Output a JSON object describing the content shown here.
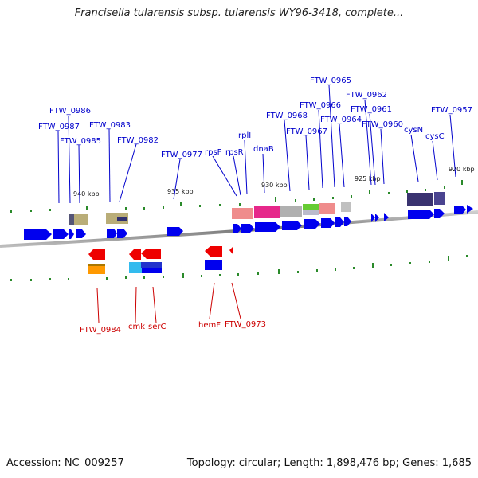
{
  "title": "Francisella tularensis subsp. tularensis WY96-3418, complete...",
  "footer": {
    "accession": "Accession: NC_009257",
    "topology": "Topology: circular; Length: 1,898,476 bp; Genes: 1,685"
  },
  "colors": {
    "forward": "#0000ee",
    "reverse": "#ee0000",
    "backbone": "#888888",
    "tick": "#2a8a2a",
    "top_label": "#0000cc",
    "bottom_label": "#cc0000"
  },
  "scale_labels": [
    "940 kbp",
    "935 kbp",
    "930 kbp",
    "925 kbp",
    "920 kbp"
  ],
  "top_genes": [
    "FTW_0986",
    "FTW_0987",
    "FTW_0985",
    "FTW_0983",
    "FTW_0982",
    "FTW_0977",
    "rpsF",
    "rpsR",
    "rplI",
    "dnaB",
    "FTW_0968",
    "FTW_0967",
    "FTW_0966",
    "FTW_0965",
    "FTW_0964",
    "FTW_0962",
    "FTW_0961",
    "FTW_0960",
    "cysN",
    "cysC",
    "FTW_0957"
  ],
  "bottom_genes": [
    "FTW_0984",
    "cmk",
    "serC",
    "hemF",
    "FTW_0973"
  ]
}
